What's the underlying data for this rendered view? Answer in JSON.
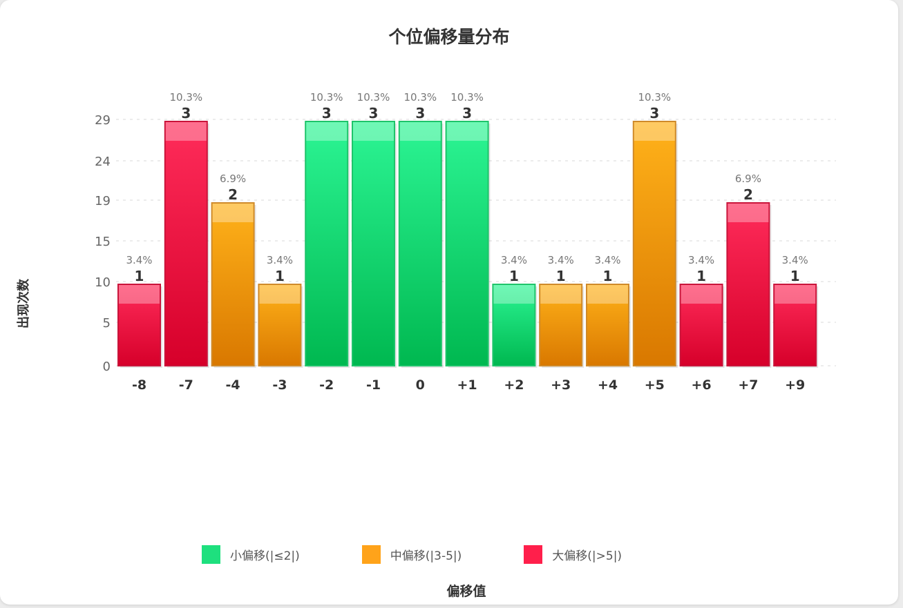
{
  "chart_data": {
    "type": "bar",
    "title": "个位偏移量分布",
    "xlabel": "偏移值",
    "ylabel": "出现次数",
    "yticks": [
      0,
      5,
      10,
      15,
      19,
      24,
      29
    ],
    "categories": [
      "-8",
      "-7",
      "-4",
      "-3",
      "-2",
      "-1",
      "0",
      "+1",
      "+2",
      "+3",
      "+4",
      "+5",
      "+6",
      "+7",
      "+9"
    ],
    "values": [
      1,
      3,
      2,
      1,
      3,
      3,
      3,
      3,
      1,
      1,
      1,
      3,
      1,
      2,
      1
    ],
    "percent_labels": [
      "3.4%",
      "10.3%",
      "6.9%",
      "3.4%",
      "10.3%",
      "10.3%",
      "10.3%",
      "10.3%",
      "3.4%",
      "3.4%",
      "3.4%",
      "10.3%",
      "3.4%",
      "6.9%",
      "3.4%"
    ],
    "groups": [
      "large",
      "large",
      "medium",
      "medium",
      "small",
      "small",
      "small",
      "small",
      "small",
      "medium",
      "medium",
      "medium",
      "large",
      "large",
      "large"
    ],
    "grid": true,
    "legend_position": "bottom",
    "legend": [
      {
        "key": "small",
        "label": "小偏移(|≤2|)",
        "color": "#1ee07e"
      },
      {
        "key": "medium",
        "label": "中偏移(|3-5|)",
        "color": "#ffa31a"
      },
      {
        "key": "large",
        "label": "大偏移(|>5|)",
        "color": "#ff1f4b"
      }
    ],
    "colors": {
      "small": {
        "top": "#2cf594",
        "bottom": "#00b850",
        "border": "#1ec46a"
      },
      "medium": {
        "top": "#ffb21a",
        "bottom": "#d97800",
        "border": "#cf8a2a"
      },
      "large": {
        "top": "#ff2c5a",
        "bottom": "#d6002a",
        "border": "#c9143a"
      }
    }
  }
}
